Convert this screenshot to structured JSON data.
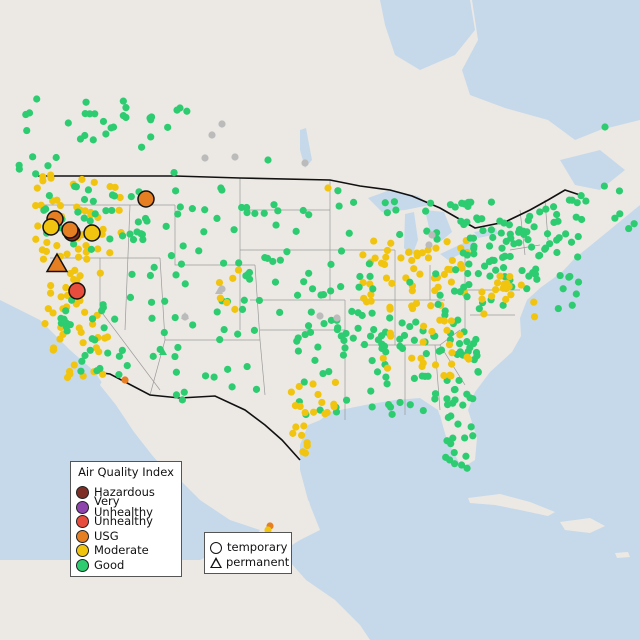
{
  "colors": {
    "ocean": "#c6d9ea",
    "land": "#ece9e4",
    "lake": "#c6d9ea",
    "border": "#111111",
    "state_line": "#9a9a9a",
    "hazardous": "#7e2e24",
    "very_unhealthy": "#8e44ad",
    "unhealthy": "#e74c3c",
    "usg": "#e67e22",
    "moderate": "#f1c40f",
    "good": "#2ecc71",
    "unavailable": "#bbbbbb"
  },
  "aqi_legend": {
    "title": "Air Quality Index",
    "items": [
      {
        "label": "Hazardous",
        "color": "#7e2e24"
      },
      {
        "label": "Very Unhealthy",
        "color": "#8e44ad"
      },
      {
        "label": "Unhealthy",
        "color": "#e74c3c"
      },
      {
        "label": "USG",
        "color": "#e67e22"
      },
      {
        "label": "Moderate",
        "color": "#f1c40f"
      },
      {
        "label": "Good",
        "color": "#2ecc71"
      }
    ]
  },
  "type_legend": {
    "items": [
      {
        "label": "temporary",
        "symbol": "circle"
      },
      {
        "label": "permanent",
        "symbol": "triangle"
      }
    ]
  }
}
